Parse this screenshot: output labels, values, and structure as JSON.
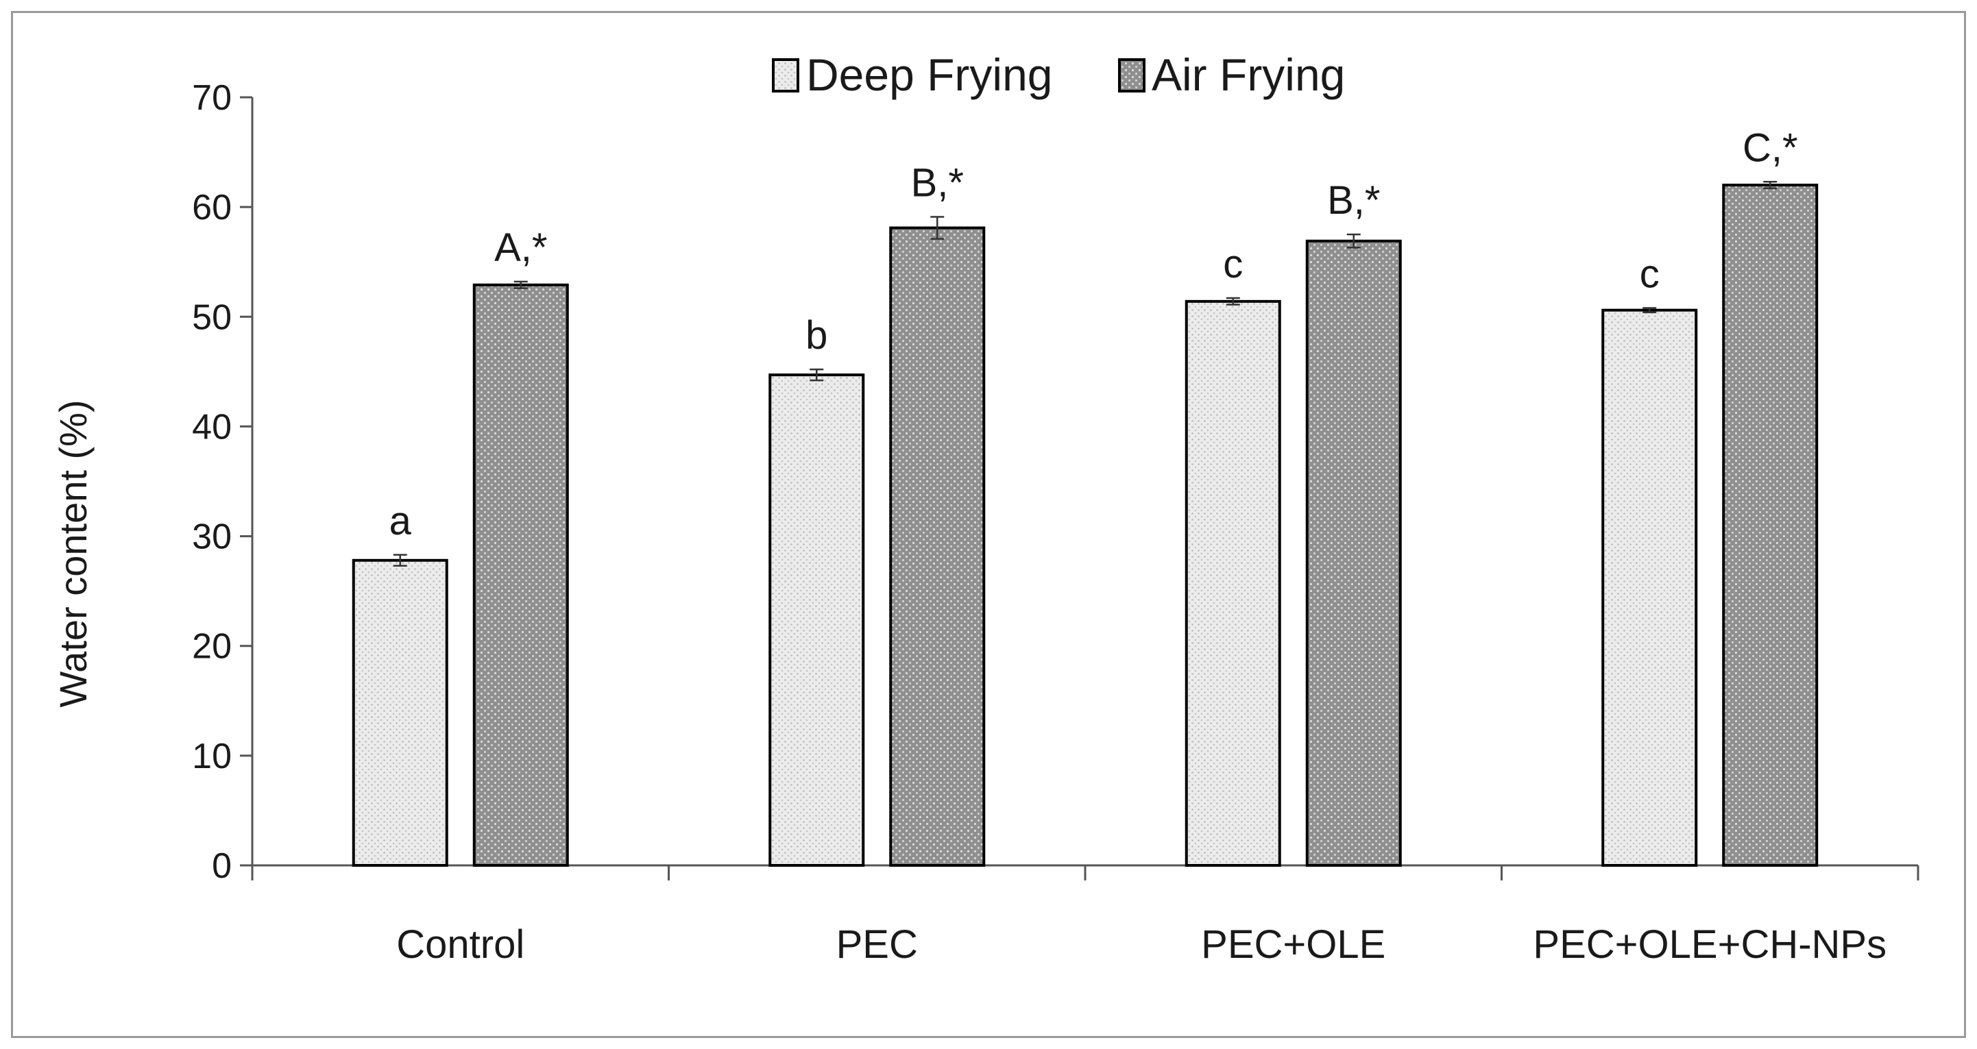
{
  "chart_data": {
    "type": "bar",
    "title": "",
    "xlabel": "",
    "ylabel": "Water content (%)",
    "ylim": [
      0,
      70
    ],
    "yticks": [
      "0",
      "10",
      "20",
      "30",
      "40",
      "50",
      "60",
      "70"
    ],
    "categories": [
      "Control",
      "PEC",
      "PEC+OLE",
      "PEC+OLE+CH-NPs"
    ],
    "legend_position": "top-center",
    "grid": false,
    "series": [
      {
        "name": "Deep Frying",
        "color": "#e8e8e8",
        "pattern": "light-dots",
        "values": [
          27.8,
          44.7,
          51.4,
          50.6
        ],
        "errors": [
          0.5,
          0.5,
          0.3,
          0.2
        ],
        "labels": [
          "a",
          "b",
          "c",
          "c"
        ]
      },
      {
        "name": "Air Frying",
        "color": "#9a9a9a",
        "pattern": "white-dots",
        "values": [
          52.9,
          58.1,
          56.9,
          62.0
        ],
        "errors": [
          0.3,
          1.0,
          0.6,
          0.3
        ],
        "labels": [
          "A,*",
          "B,*",
          "B,*",
          "C,*"
        ]
      }
    ]
  }
}
